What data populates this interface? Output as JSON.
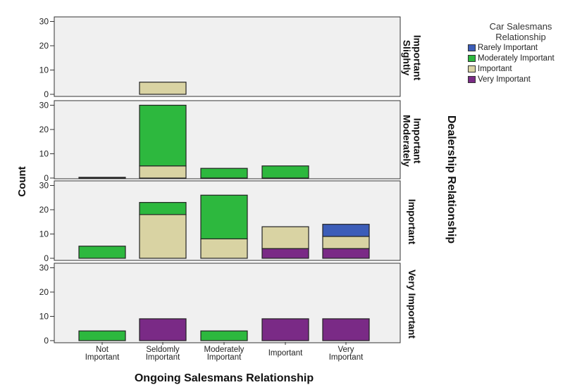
{
  "chart_data": {
    "type": "bar",
    "stacked": true,
    "xlabel": "Ongoing Salesmans Relationship",
    "ylabel": "Count",
    "panel_axis_label": "Dealership Relationship",
    "ylim": [
      0,
      30
    ],
    "yticks": [
      0,
      10,
      20,
      30
    ],
    "categories": [
      [
        "Not",
        "Important"
      ],
      [
        "Seldomly",
        "Important"
      ],
      [
        "Moderately",
        "Important"
      ],
      [
        "Important"
      ],
      [
        "Very",
        "Important"
      ]
    ],
    "legend": {
      "title": [
        "Car Salesmans",
        "Relationship"
      ],
      "position": "top-right",
      "items": [
        "Rarely Important",
        "Moderately Important",
        "Important",
        "Very Important"
      ]
    },
    "colors": {
      "Rarely Important": "#3c5db8",
      "Moderately Important": "#2db83e",
      "Important": "#d9d3a3",
      "Very Important": "#7a2a86",
      "panel_bg": "#f0f0f0"
    },
    "stack_order": [
      "Very Important",
      "Important",
      "Moderately Important",
      "Rarely Important"
    ],
    "panels": [
      {
        "label": [
          "Slightly",
          "Important"
        ],
        "bars": [
          {},
          {
            "Important": 5
          },
          {},
          {},
          {}
        ]
      },
      {
        "label": [
          "Moderately",
          "Important"
        ],
        "bars": [
          {
            "Moderately Important": 0.3
          },
          {
            "Important": 5,
            "Moderately Important": 25
          },
          {
            "Moderately Important": 4
          },
          {
            "Moderately Important": 5
          },
          {}
        ]
      },
      {
        "label": [
          "Important"
        ],
        "bars": [
          {
            "Moderately Important": 5
          },
          {
            "Important": 18,
            "Moderately Important": 5
          },
          {
            "Important": 8,
            "Moderately Important": 18
          },
          {
            "Very Important": 4,
            "Important": 9
          },
          {
            "Very Important": 4,
            "Important": 5,
            "Rarely Important": 5
          }
        ]
      },
      {
        "label": [
          "Very Important"
        ],
        "bars": [
          {
            "Moderately Important": 4
          },
          {
            "Very Important": 9
          },
          {
            "Moderately Important": 4
          },
          {
            "Very Important": 9
          },
          {
            "Very Important": 9
          }
        ]
      }
    ]
  }
}
